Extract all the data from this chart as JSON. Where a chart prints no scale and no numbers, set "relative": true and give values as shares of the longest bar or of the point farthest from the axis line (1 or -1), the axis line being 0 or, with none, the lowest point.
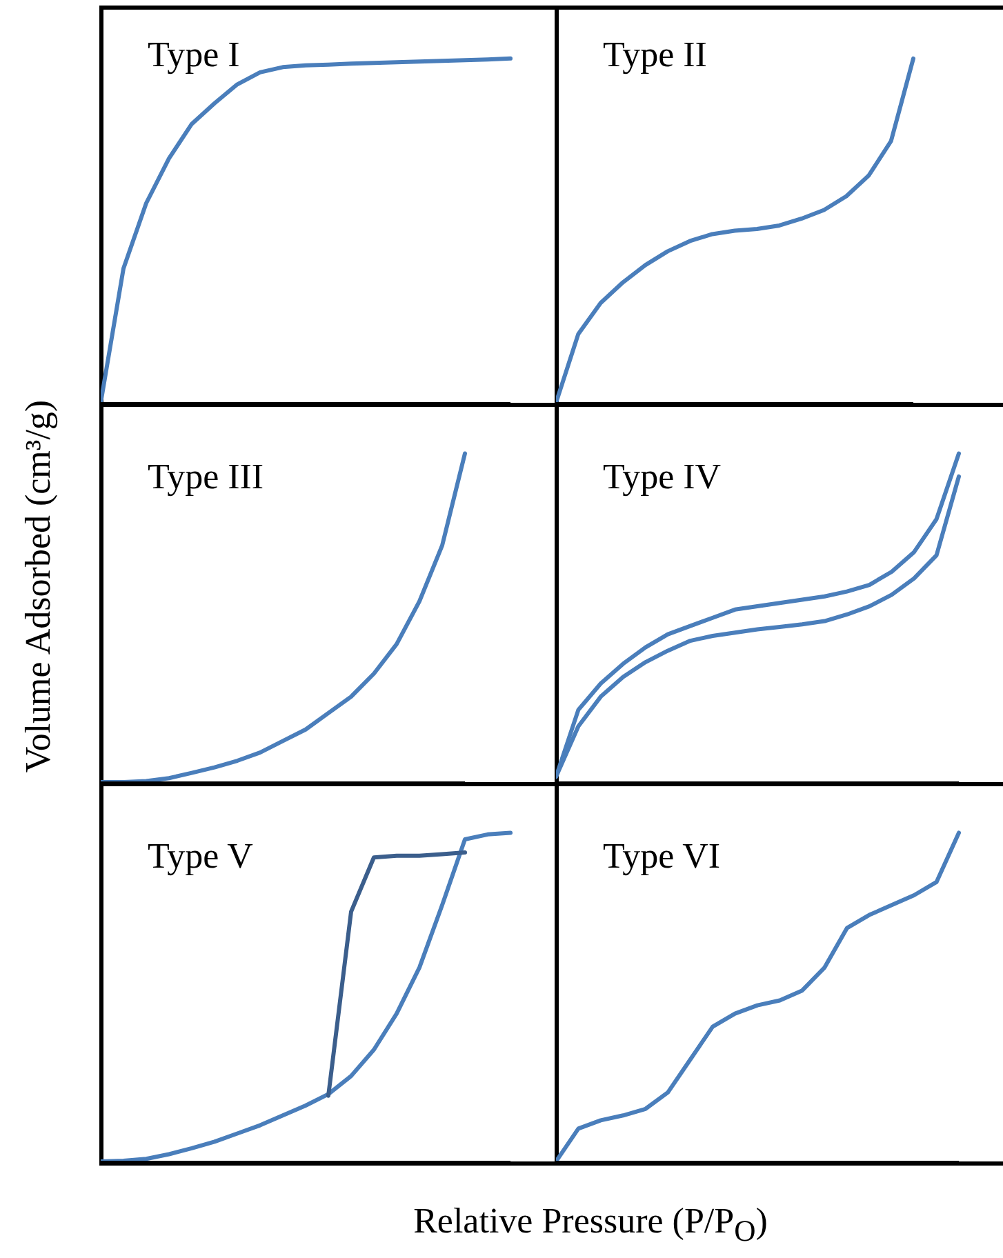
{
  "chart_data": [
    {
      "type": "line",
      "title": "Type I",
      "ylabel": "Volume Adsorbed (cm³/g)",
      "relative": true,
      "marker": "none",
      "categories": [
        null,
        null,
        null,
        null,
        null,
        null,
        null,
        null,
        null,
        null,
        null,
        null,
        null,
        null,
        null,
        null,
        null,
        null,
        null
      ],
      "series": [
        {
          "color": "#4a7ebb",
          "values": [
            0,
            0.39,
            0.58,
            0.71,
            0.81,
            0.87,
            0.925,
            0.96,
            0.975,
            0.98,
            0.982,
            0.985,
            0.987,
            0.989,
            0.991,
            0.993,
            0.995,
            0.997,
            1
          ]
        }
      ]
    },
    {
      "type": "line",
      "title": "Type II",
      "relative": true,
      "marker": "none",
      "categories": [
        null,
        null,
        null,
        null,
        null,
        null,
        null,
        null,
        null,
        null,
        null,
        null,
        null,
        null,
        null,
        null,
        null
      ],
      "series": [
        {
          "color": "#4a7ebb",
          "values": [
            0,
            0.2,
            0.29,
            0.35,
            0.4,
            0.44,
            0.47,
            0.49,
            0.5,
            0.505,
            0.515,
            0.535,
            0.56,
            0.6,
            0.66,
            0.76,
            1
          ]
        }
      ]
    },
    {
      "type": "line",
      "title": "Type III",
      "relative": true,
      "marker": "none",
      "categories": [
        null,
        null,
        null,
        null,
        null,
        null,
        null,
        null,
        null,
        null,
        null,
        null,
        null,
        null,
        null,
        null,
        null
      ],
      "series": [
        {
          "color": "#4a7ebb",
          "values": [
            0,
            0,
            0.003,
            0.012,
            0.028,
            0.045,
            0.065,
            0.09,
            0.125,
            0.16,
            0.21,
            0.26,
            0.33,
            0.42,
            0.55,
            0.72,
            1
          ]
        }
      ]
    },
    {
      "type": "line",
      "title": "Type IV",
      "relative": true,
      "marker": "none",
      "categories": [
        null,
        null,
        null,
        null,
        null,
        null,
        null,
        null,
        null,
        null,
        null,
        null,
        null,
        null,
        null,
        null,
        null,
        null,
        null
      ],
      "series": [
        {
          "color": "#4a7ebb",
          "values": [
            0.016,
            0.22,
            0.3,
            0.36,
            0.41,
            0.45,
            0.475,
            0.5,
            0.525,
            0.535,
            0.545,
            0.555,
            0.565,
            0.58,
            0.6,
            0.64,
            0.7,
            0.8,
            1
          ]
        },
        {
          "color": "#4a7ebb",
          "values": [
            0.016,
            0.17,
            0.26,
            0.32,
            0.365,
            0.4,
            0.43,
            0.445,
            0.455,
            0.465,
            0.472,
            0.48,
            0.49,
            0.51,
            0.535,
            0.57,
            0.62,
            0.69,
            0.93
          ]
        }
      ]
    },
    {
      "type": "line",
      "title": "Type V",
      "xlabel": "Relative Pressure (P/P$_{O}$)",
      "relative": true,
      "marker": "none",
      "categories": [
        null,
        null,
        null,
        null,
        null,
        null,
        null,
        null,
        null,
        null,
        null,
        null,
        null,
        null,
        null,
        null,
        null,
        null,
        null
      ],
      "series": [
        {
          "color": "#4a7ebb",
          "values": [
            0,
            0.002,
            0.008,
            0.022,
            0.04,
            0.06,
            0.085,
            0.11,
            0.14,
            0.17,
            0.205,
            0.26,
            0.34,
            0.45,
            0.59,
            0.78,
            0.98,
            0.995,
            1
          ]
        },
        {
          "color": "#3b5e8c",
          "values": [
            null,
            null,
            null,
            null,
            null,
            null,
            null,
            null,
            null,
            null,
            0.2,
            0.76,
            0.925,
            0.93,
            0.93,
            0.935,
            0.94,
            null,
            null
          ]
        }
      ]
    },
    {
      "type": "line",
      "title": "Type VI",
      "relative": true,
      "marker": "none",
      "categories": [
        null,
        null,
        null,
        null,
        null,
        null,
        null,
        null,
        null,
        null,
        null,
        null,
        null,
        null,
        null,
        null,
        null,
        null,
        null
      ],
      "series": [
        {
          "color": "#4a7ebb",
          "values": [
            0,
            0.1,
            0.125,
            0.14,
            0.16,
            0.21,
            0.31,
            0.41,
            0.45,
            0.475,
            0.49,
            0.52,
            0.59,
            0.71,
            0.75,
            0.78,
            0.81,
            0.85,
            1
          ]
        }
      ]
    }
  ]
}
